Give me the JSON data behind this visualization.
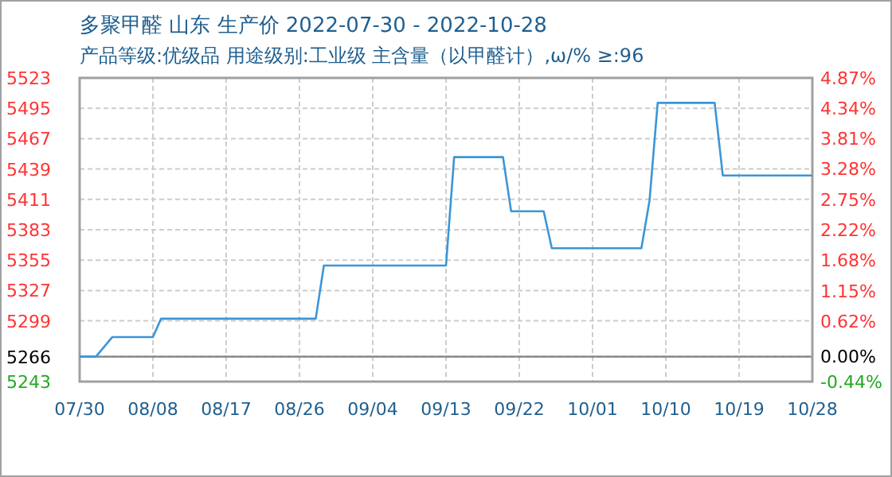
{
  "chart_data": {
    "type": "line",
    "title": "多聚甲醛 山东 生产价 2022-07-30 - 2022-10-28",
    "subtitle": "产品等级:优级品 用途级别:工业级 主含量（以甲醛计）,ω/%  ≥:96",
    "x": [
      "2022-07-30",
      "2022-08-01",
      "2022-08-03",
      "2022-08-08",
      "2022-08-09",
      "2022-08-28",
      "2022-08-29",
      "2022-09-13",
      "2022-09-14",
      "2022-09-20",
      "2022-09-21",
      "2022-09-25",
      "2022-09-26",
      "2022-10-07",
      "2022-10-08",
      "2022-10-09",
      "2022-10-16",
      "2022-10-17",
      "2022-10-28"
    ],
    "series": [
      {
        "color": "#3a96d8",
        "values": [
          5266,
          5266,
          5284,
          5284,
          5301,
          5301,
          5350,
          5350,
          5450,
          5450,
          5400,
          5400,
          5366,
          5366,
          5410,
          5500,
          5500,
          5433,
          5433
        ]
      }
    ],
    "xlim": [
      "2022-07-30",
      "2022-10-28"
    ],
    "xticks": [
      {
        "value": "2022-07-30",
        "label": "07/30"
      },
      {
        "value": "2022-08-08",
        "label": "08/08"
      },
      {
        "value": "2022-08-17",
        "label": "08/17"
      },
      {
        "value": "2022-08-26",
        "label": "08/26"
      },
      {
        "value": "2022-09-04",
        "label": "09/04"
      },
      {
        "value": "2022-09-13",
        "label": "09/13"
      },
      {
        "value": "2022-09-22",
        "label": "09/22"
      },
      {
        "value": "2022-10-01",
        "label": "10/01"
      },
      {
        "value": "2022-10-10",
        "label": "10/10"
      },
      {
        "value": "2022-10-19",
        "label": "10/19"
      },
      {
        "value": "2022-10-28",
        "label": "10/28"
      }
    ],
    "ylim": [
      5243,
      5523
    ],
    "yticks": [
      5243,
      5266,
      5299,
      5327,
      5355,
      5383,
      5411,
      5439,
      5467,
      5495,
      5523
    ],
    "y2lim": [
      -0.44,
      4.87
    ],
    "y2ticks": [
      {
        "value": -0.44,
        "label": "-0.44%"
      },
      {
        "value": 0,
        "label": "0.00%"
      },
      {
        "value": 0.62,
        "label": "0.62%"
      },
      {
        "value": 1.15,
        "label": "1.15%"
      },
      {
        "value": 1.68,
        "label": "1.68%"
      },
      {
        "value": 2.22,
        "label": "2.22%"
      },
      {
        "value": 2.75,
        "label": "2.75%"
      },
      {
        "value": 3.28,
        "label": "3.28%"
      },
      {
        "value": 3.81,
        "label": "3.81%"
      },
      {
        "value": 4.34,
        "label": "4.34%"
      },
      {
        "value": 4.87,
        "label": "4.87%"
      }
    ],
    "grid": true,
    "ref_lines": [
      {
        "axis": "y",
        "value": 5266,
        "color": "#808080"
      }
    ]
  }
}
